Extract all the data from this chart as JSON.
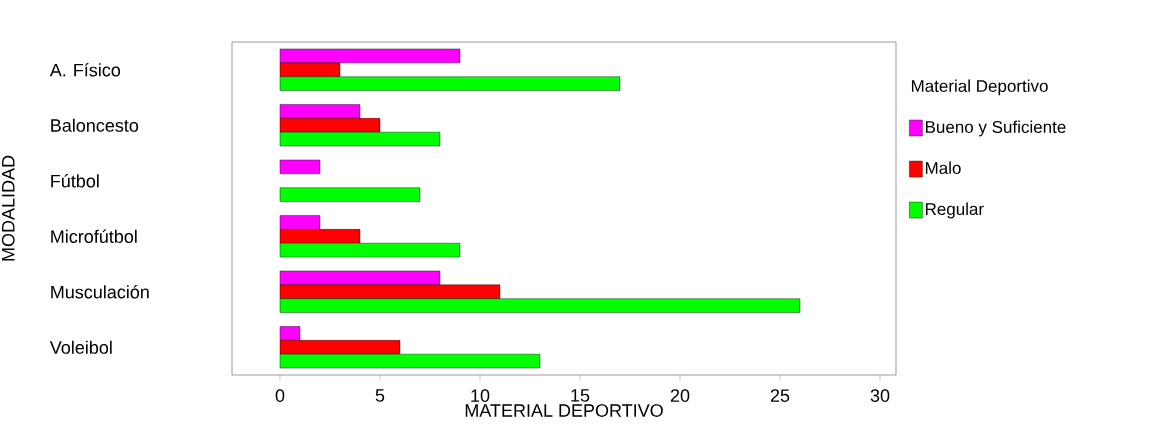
{
  "chart_data": {
    "type": "bar",
    "orientation": "horizontal",
    "xlabel": "MATERIAL DEPORTIVO",
    "ylabel": "MODALIDAD",
    "legend_title": "Material Deportivo",
    "legend": "right",
    "categories": [
      "A. Físico",
      "Baloncesto",
      "Fútbol",
      "Microfútbol",
      "Musculación",
      "Voleibol"
    ],
    "series": [
      {
        "name": "Bueno y Suficiente",
        "color": "#ff00ff",
        "values": [
          9,
          4,
          2,
          2,
          8,
          1
        ]
      },
      {
        "name": "Malo",
        "color": "#ff0000",
        "values": [
          3,
          5,
          null,
          4,
          11,
          6
        ]
      },
      {
        "name": "Regular",
        "color": "#00ff00",
        "values": [
          17,
          8,
          7,
          9,
          26,
          13
        ]
      }
    ],
    "xlim": [
      -2.4,
      30.8
    ],
    "xticks": [
      0,
      5,
      10,
      15,
      20,
      25,
      30
    ],
    "grid": false
  }
}
